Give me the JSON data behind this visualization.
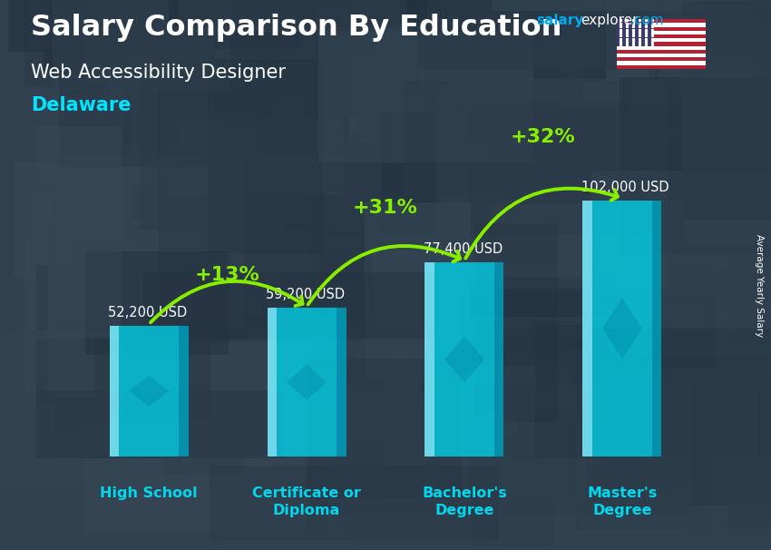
{
  "title_line1": "Salary Comparison By Education",
  "subtitle": "Web Accessibility Designer",
  "location": "Delaware",
  "ylabel": "Average Yearly Salary",
  "categories": [
    "High School",
    "Certificate or\nDiploma",
    "Bachelor's\nDegree",
    "Master's\nDegree"
  ],
  "values": [
    52200,
    59200,
    77400,
    102000
  ],
  "value_labels": [
    "52,200 USD",
    "59,200 USD",
    "77,400 USD",
    "102,000 USD"
  ],
  "pct_labels": [
    "+13%",
    "+31%",
    "+32%"
  ],
  "bar_color": "#00d8f0",
  "bar_alpha": 0.75,
  "bg_dark": "#3a4a5a",
  "bg_light": "#5a6a7a",
  "title_color": "#ffffff",
  "subtitle_color": "#ffffff",
  "location_color": "#00e5ff",
  "value_label_color": "#ffffff",
  "pct_color": "#88ee00",
  "xlabel_color": "#00d8f0",
  "arrow_color": "#88ee00",
  "ylim": [
    0,
    125000
  ],
  "bar_width": 0.5,
  "brand_salary_color": "#00aaff",
  "brand_explorer_color": "#ffffff",
  "brand_com_color": "#00aaff"
}
